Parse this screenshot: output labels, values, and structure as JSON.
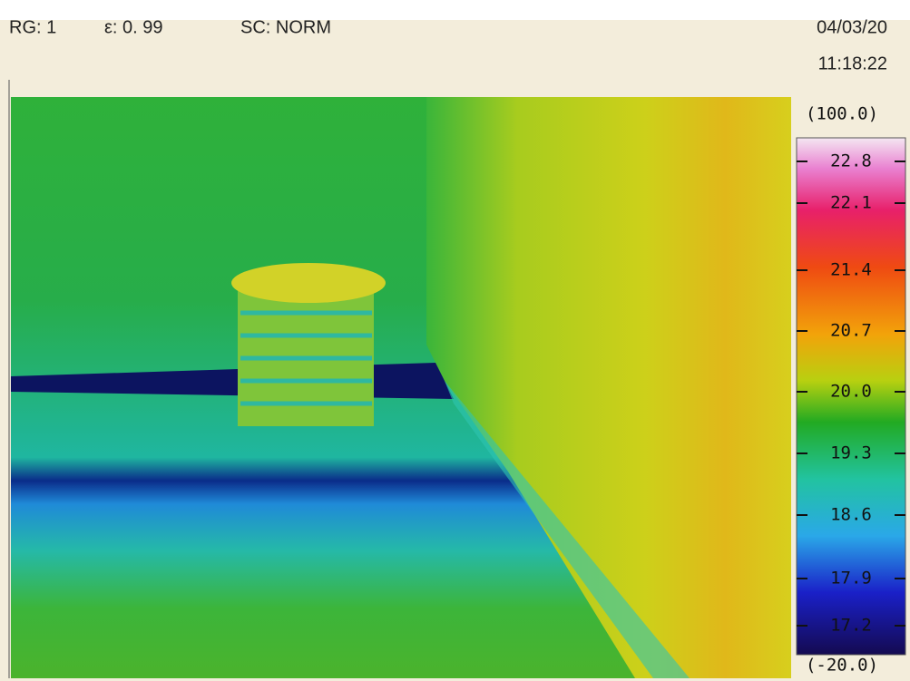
{
  "header": {
    "range": "RG: 1",
    "emissivity": "ε: 0. 99",
    "scale_mode": "SC: NORM",
    "date": "04/03/20",
    "time": "11:18:22"
  },
  "colorbar": {
    "max": "(100.0)",
    "min": "(-20.0)",
    "labels": [
      "22.8",
      "22.1",
      "21.4",
      "20.7",
      "20.0",
      "19.3",
      "18.6",
      "17.9",
      "17.2"
    ]
  }
}
